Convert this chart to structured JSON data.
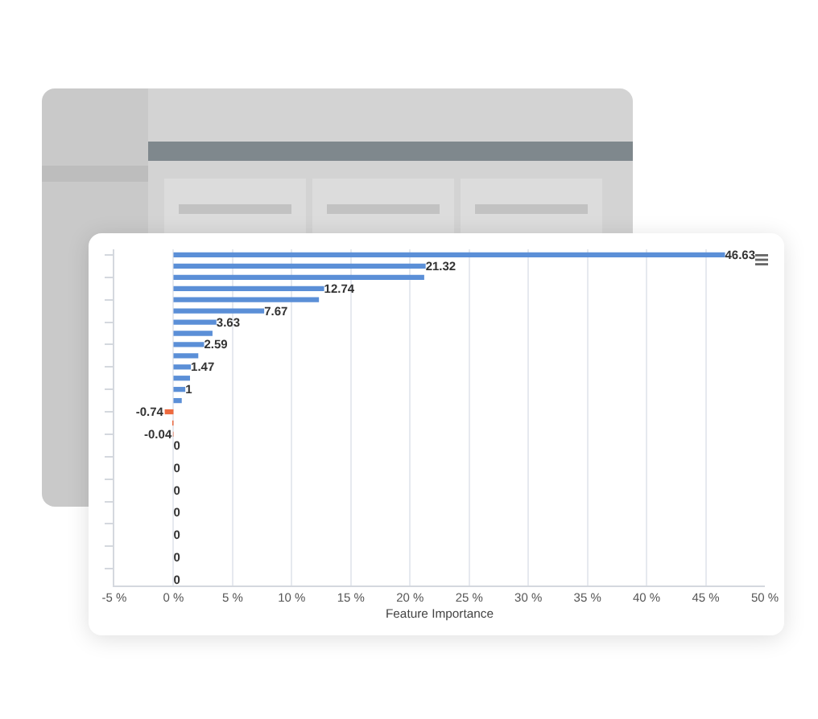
{
  "chart_data": {
    "type": "bar",
    "orientation": "horizontal",
    "categories": [
      null,
      null,
      null,
      null,
      null,
      null,
      null,
      null,
      null,
      null,
      null,
      null,
      null,
      null,
      null,
      null,
      null,
      null,
      null,
      null,
      null,
      null,
      null,
      null,
      null,
      null,
      null,
      null,
      null,
      null
    ],
    "values": [
      46.63,
      21.32,
      21.2,
      12.74,
      12.3,
      7.67,
      3.63,
      3.3,
      2.59,
      2.1,
      1.47,
      1.4,
      1,
      0.7,
      -0.74,
      -0.1,
      -0.04,
      0,
      0,
      0,
      0,
      0,
      0,
      0,
      0,
      0,
      0,
      0,
      0,
      0
    ],
    "colors": [
      "#5b8fd7",
      "#5b8fd7",
      "#5b8fd7",
      "#5b8fd7",
      "#5b8fd7",
      "#5b8fd7",
      "#5b8fd7",
      "#5b8fd7",
      "#5b8fd7",
      "#5b8fd7",
      "#5b8fd7",
      "#5b8fd7",
      "#5b8fd7",
      "#5b8fd7",
      "#ee6a3f",
      "#ee6a3f",
      "#ee6a3f",
      "#5b8fd7",
      "#5b8fd7",
      "#5b8fd7",
      "#5b8fd7",
      "#5b8fd7",
      "#5b8fd7",
      "#5b8fd7",
      "#5b8fd7",
      "#5b8fd7",
      "#5b8fd7",
      "#5b8fd7",
      "#5b8fd7",
      "#5b8fd7"
    ],
    "value_labels": [
      "46.63",
      "21.32",
      null,
      "12.74",
      null,
      "7.67",
      "3.63",
      null,
      "2.59",
      null,
      "1.47",
      null,
      "1",
      null,
      "-0.74",
      null,
      "-0.04",
      "0",
      null,
      "0",
      null,
      "0",
      null,
      "0",
      null,
      "0",
      null,
      "0",
      null,
      "0"
    ],
    "xlabel": "Feature Importance",
    "xlim": [
      -5,
      50
    ],
    "xticks": [
      {
        "value": -5,
        "label": "-5 %"
      },
      {
        "value": 0,
        "label": "0 %"
      },
      {
        "value": 5,
        "label": "5 %"
      },
      {
        "value": 10,
        "label": "10 %"
      },
      {
        "value": 15,
        "label": "15 %"
      },
      {
        "value": 20,
        "label": "20 %"
      },
      {
        "value": 25,
        "label": "25 %"
      },
      {
        "value": 30,
        "label": "30 %"
      },
      {
        "value": 35,
        "label": "35 %"
      },
      {
        "value": 40,
        "label": "40 %"
      },
      {
        "value": 45,
        "label": "45 %"
      },
      {
        "value": 50,
        "label": "50 %"
      }
    ],
    "grid": "x",
    "tick_labels": "x"
  }
}
